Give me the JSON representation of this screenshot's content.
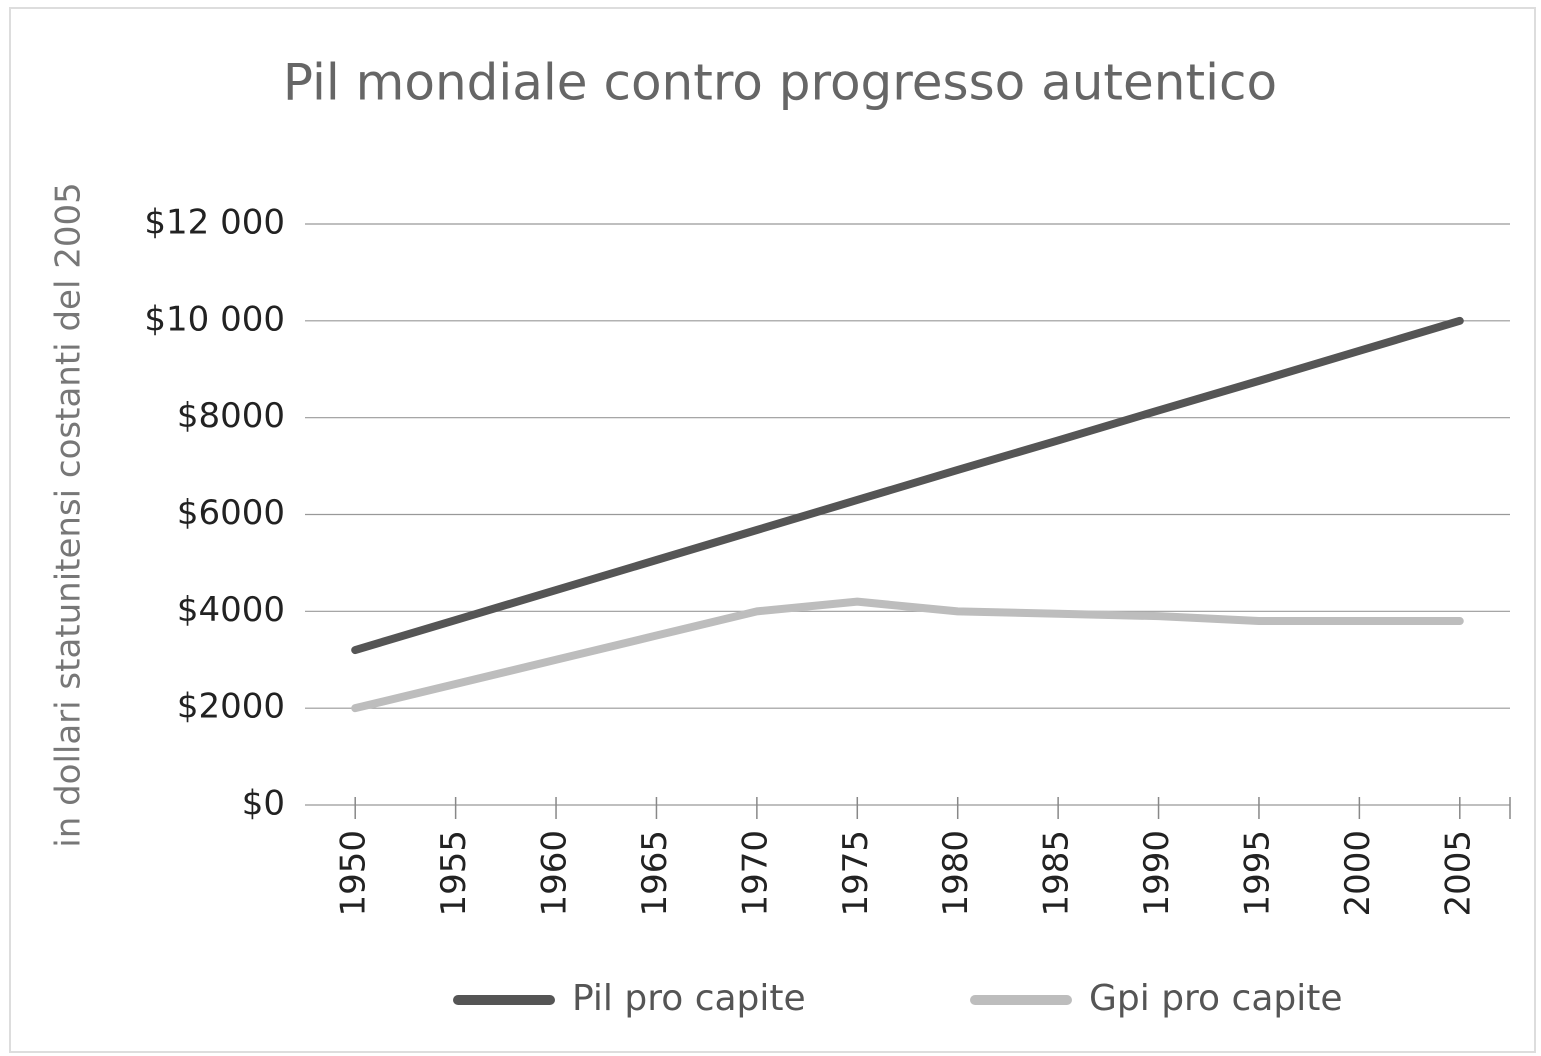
{
  "chart_data": {
    "type": "line",
    "title": "Pil mondiale contro progresso autentico",
    "y_label": "in dollari statunitensi costanti del 2005",
    "categories": [
      "1950",
      "1955",
      "1960",
      "1965",
      "1970",
      "1975",
      "1980",
      "1985",
      "1990",
      "1995",
      "2000",
      "2005"
    ],
    "series": [
      {
        "name": "Pil pro capite",
        "color": "#555555",
        "values": [
          3200,
          3820,
          4440,
          5060,
          5680,
          6300,
          6920,
          7530,
          8150,
          8760,
          9380,
          10000
        ]
      },
      {
        "name": "Gpi pro capite",
        "color": "#bdbdbd",
        "values": [
          2000,
          2500,
          3000,
          3500,
          4000,
          4200,
          4000,
          3950,
          3900,
          3800,
          3800,
          3800
        ]
      }
    ],
    "ylim": [
      0,
      12000
    ],
    "yticks": [
      {
        "value": 0,
        "label": "$0"
      },
      {
        "value": 2000,
        "label": "$2000"
      },
      {
        "value": 4000,
        "label": "$4000"
      },
      {
        "value": 6000,
        "label": "$6000"
      },
      {
        "value": 8000,
        "label": "$8000"
      },
      {
        "value": 10000,
        "label": "$10 000"
      },
      {
        "value": 12000,
        "label": "$12 000"
      }
    ],
    "grid": true,
    "legend": "bottom"
  }
}
